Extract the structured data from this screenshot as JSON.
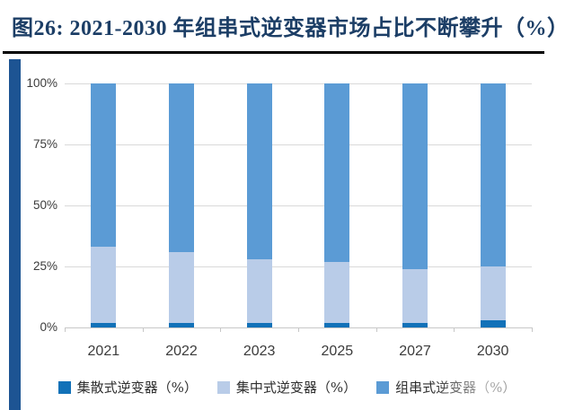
{
  "title": {
    "label": "图26:  2021-2030 年组串式逆变器市场占比不断攀升（%）"
  },
  "colors": {
    "title_navy": "#1c3e66",
    "accent_bar": "#1d5493",
    "series_dark_blue": "#1271b8",
    "series_light_blue": "#b9cce8",
    "series_mid_blue": "#5b9bd5",
    "gridline": "#d9d9d9",
    "axis_text": "#3b3b3b",
    "title_rule": "#000000"
  },
  "chart_data": {
    "type": "bar",
    "stacked": true,
    "title": "2021-2030 年组串式逆变器市场占比不断攀升（%）",
    "categories": [
      "2021",
      "2022",
      "2023",
      "2025",
      "2027",
      "2030"
    ],
    "series": [
      {
        "name": "集散式逆变器（%）",
        "color": "#1271b8",
        "values": [
          2,
          2,
          2,
          2,
          2,
          3
        ]
      },
      {
        "name": "集中式逆变器（%）",
        "color": "#b9cce8",
        "values": [
          31,
          29,
          26,
          25,
          22,
          22
        ]
      },
      {
        "name": "组串式逆变器（%）",
        "color": "#5b9bd5",
        "values": [
          67,
          69,
          72,
          73,
          76,
          75
        ]
      }
    ],
    "xlabel": "",
    "ylabel": "",
    "y_ticks": [
      {
        "label": "0%",
        "value": 0
      },
      {
        "label": "25%",
        "value": 25
      },
      {
        "label": "50%",
        "value": 50
      },
      {
        "label": "75%",
        "value": 75
      },
      {
        "label": "100%",
        "value": 100
      }
    ],
    "ylim": [
      0,
      100
    ],
    "grid": true,
    "legend_position": "bottom"
  }
}
